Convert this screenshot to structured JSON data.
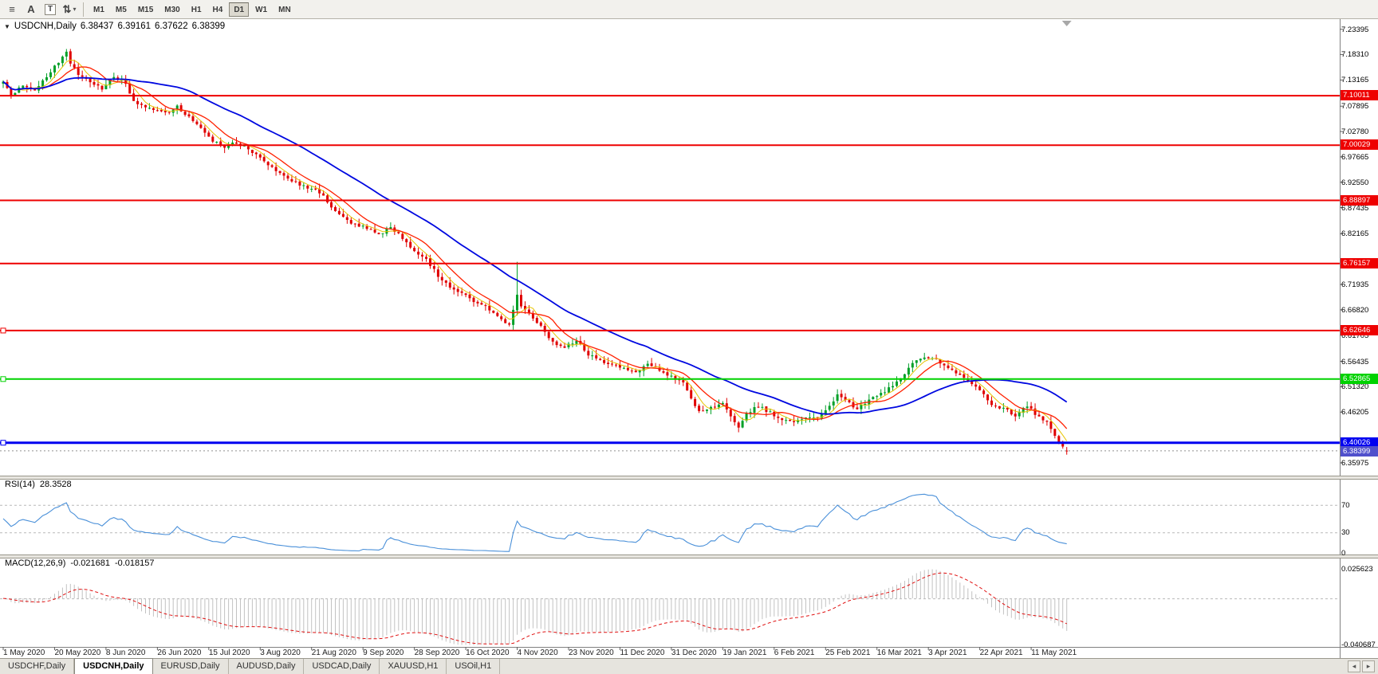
{
  "toolbar": {
    "dropdown_glyph": "▾",
    "icons": [
      {
        "name": "chart-list",
        "glyph": "≡",
        "dropdown": false,
        "boxed": false
      },
      {
        "name": "cursor-tool",
        "glyph": "A",
        "dropdown": false,
        "boxed": false
      },
      {
        "name": "text-tool",
        "glyph": "T",
        "dropdown": false,
        "boxed": true
      },
      {
        "name": "objects-tool",
        "glyph": "⇅",
        "dropdown": true,
        "boxed": false
      }
    ],
    "timeframes": [
      {
        "label": "M1",
        "active": false
      },
      {
        "label": "M5",
        "active": false
      },
      {
        "label": "M15",
        "active": false
      },
      {
        "label": "M30",
        "active": false
      },
      {
        "label": "H1",
        "active": false
      },
      {
        "label": "H4",
        "active": false
      },
      {
        "label": "D1",
        "active": true
      },
      {
        "label": "W1",
        "active": false
      },
      {
        "label": "MN",
        "active": false
      }
    ]
  },
  "chart_data": {
    "type": "candlestick",
    "symbol": "USDCNH",
    "timeframe": "Daily",
    "header_symbol": "USDCNH,Daily",
    "collapse_glyph": "▼",
    "ohlc": {
      "open": "6.38437",
      "high": "6.39161",
      "low": "6.37622",
      "close": "6.38399"
    },
    "current_price": "6.38399",
    "price_axis": {
      "min": 6.342,
      "max": 7.248,
      "ticks": [
        "7.23395",
        "7.18310",
        "7.13165",
        "7.07895",
        "7.02780",
        "6.97665",
        "6.92550",
        "6.87435",
        "6.82165",
        "6.71935",
        "6.66820",
        "6.61705",
        "6.56435",
        "6.51320",
        "6.46205",
        "6.35975"
      ]
    },
    "hlines": [
      {
        "price": 7.10011,
        "label": "7.10011",
        "color": "#ee0000",
        "thickness": 2,
        "handle": false
      },
      {
        "price": 7.00029,
        "label": "7.00029",
        "color": "#ee0000",
        "thickness": 2,
        "handle": false
      },
      {
        "price": 6.88897,
        "label": "6.88897",
        "color": "#ee0000",
        "thickness": 2,
        "handle": false
      },
      {
        "price": 6.76157,
        "label": "6.76157",
        "color": "#ee0000",
        "thickness": 2,
        "handle": false
      },
      {
        "price": 6.62646,
        "label": "6.62646",
        "color": "#ee0000",
        "thickness": 2,
        "handle": true
      },
      {
        "price": 6.52865,
        "label": "6.52865",
        "color": "#00d200",
        "thickness": 2,
        "handle": true
      },
      {
        "price": 6.40026,
        "label": "6.40026",
        "color": "#0000f0",
        "thickness": 3,
        "handle": true
      }
    ],
    "date_labels": [
      "1 May 2020",
      "20 May 2020",
      "8 Jun 2020",
      "26 Jun 2020",
      "15 Jul 2020",
      "3 Aug 2020",
      "21 Aug 2020",
      "9 Sep 2020",
      "28 Sep 2020",
      "16 Oct 2020",
      "4 Nov 2020",
      "23 Nov 2020",
      "11 Dec 2020",
      "31 Dec 2020",
      "19 Jan 2021",
      "6 Feb 2021",
      "25 Feb 2021",
      "16 Mar 2021",
      "3 Apr 2021",
      "22 Apr 2021",
      "11 May 2021"
    ],
    "days_per_label": 13,
    "days": 270,
    "close_path_anchors": [
      [
        0,
        7.125
      ],
      [
        2,
        7.1
      ],
      [
        5,
        7.12
      ],
      [
        8,
        7.11
      ],
      [
        11,
        7.14
      ],
      [
        14,
        7.168
      ],
      [
        16,
        7.192
      ],
      [
        17,
        7.165
      ],
      [
        19,
        7.142
      ],
      [
        22,
        7.13
      ],
      [
        25,
        7.115
      ],
      [
        28,
        7.138
      ],
      [
        31,
        7.125
      ],
      [
        33,
        7.09
      ],
      [
        36,
        7.075
      ],
      [
        39,
        7.07
      ],
      [
        42,
        7.064
      ],
      [
        44,
        7.08
      ],
      [
        47,
        7.055
      ],
      [
        50,
        7.034
      ],
      [
        53,
        7.01
      ],
      [
        56,
        6.998
      ],
      [
        59,
        7.006
      ],
      [
        62,
        6.992
      ],
      [
        65,
        6.974
      ],
      [
        68,
        6.955
      ],
      [
        71,
        6.94
      ],
      [
        74,
        6.925
      ],
      [
        77,
        6.915
      ],
      [
        80,
        6.905
      ],
      [
        83,
        6.878
      ],
      [
        86,
        6.856
      ],
      [
        89,
        6.84
      ],
      [
        92,
        6.834
      ],
      [
        95,
        6.82
      ],
      [
        98,
        6.838
      ],
      [
        101,
        6.81
      ],
      [
        104,
        6.79
      ],
      [
        107,
        6.768
      ],
      [
        110,
        6.738
      ],
      [
        113,
        6.712
      ],
      [
        116,
        6.7
      ],
      [
        119,
        6.686
      ],
      [
        122,
        6.675
      ],
      [
        125,
        6.655
      ],
      [
        128,
        6.636
      ],
      [
        130,
        6.698
      ],
      [
        131,
        6.672
      ],
      [
        133,
        6.66
      ],
      [
        136,
        6.636
      ],
      [
        139,
        6.602
      ],
      [
        142,
        6.592
      ],
      [
        145,
        6.606
      ],
      [
        148,
        6.578
      ],
      [
        151,
        6.566
      ],
      [
        154,
        6.557
      ],
      [
        157,
        6.55
      ],
      [
        160,
        6.544
      ],
      [
        163,
        6.558
      ],
      [
        166,
        6.546
      ],
      [
        169,
        6.534
      ],
      [
        172,
        6.52
      ],
      [
        174,
        6.49
      ],
      [
        176,
        6.463
      ],
      [
        179,
        6.47
      ],
      [
        182,
        6.477
      ],
      [
        184,
        6.452
      ],
      [
        186,
        6.433
      ],
      [
        188,
        6.458
      ],
      [
        191,
        6.474
      ],
      [
        194,
        6.46
      ],
      [
        197,
        6.446
      ],
      [
        200,
        6.44
      ],
      [
        203,
        6.448
      ],
      [
        206,
        6.452
      ],
      [
        209,
        6.473
      ],
      [
        211,
        6.5
      ],
      [
        213,
        6.483
      ],
      [
        216,
        6.47
      ],
      [
        219,
        6.488
      ],
      [
        222,
        6.5
      ],
      [
        225,
        6.514
      ],
      [
        228,
        6.538
      ],
      [
        231,
        6.568
      ],
      [
        233,
        6.575
      ],
      [
        236,
        6.566
      ],
      [
        239,
        6.55
      ],
      [
        242,
        6.536
      ],
      [
        245,
        6.52
      ],
      [
        248,
        6.496
      ],
      [
        250,
        6.476
      ],
      [
        253,
        6.469
      ],
      [
        256,
        6.455
      ],
      [
        258,
        6.474
      ],
      [
        260,
        6.467
      ],
      [
        262,
        6.45
      ],
      [
        264,
        6.44
      ],
      [
        266,
        6.415
      ],
      [
        267,
        6.403
      ],
      [
        268,
        6.392
      ],
      [
        269,
        6.384
      ]
    ],
    "spike": {
      "day": 130,
      "high": 6.765
    },
    "moving_averages": [
      {
        "name": "ma-fast",
        "period": 5,
        "color": "#e8c400",
        "width": 1
      },
      {
        "name": "ma-medium",
        "period": 10,
        "color": "#ff2000",
        "width": 1.3
      },
      {
        "name": "ma-slow",
        "period": 34,
        "color": "#0008e0",
        "width": 1.8
      }
    ],
    "colors": {
      "up": "#00a028",
      "down": "#e00000",
      "axis_border": "#808080",
      "current_price_label_bg": "#5050cc",
      "dotted_price_line": "#909090",
      "macd_hist": "#c2c2c2",
      "macd_signal": "#e01010",
      "rsi_line": "#4a90d9",
      "level_dash": "#b8b8b8"
    },
    "indicators": {
      "rsi": {
        "label": "RSI(14)",
        "current": "28.3528",
        "period": 14,
        "levels": [
          70,
          30,
          0
        ]
      },
      "macd": {
        "label": "MACD(12,26,9)",
        "macd_value": "-0.021681",
        "signal_value": "-0.018157",
        "axis_top": "0.025623",
        "axis_bottom": "-0.040687"
      }
    }
  },
  "tab_bar": {
    "scroll_left": "◂",
    "scroll_right": "▸",
    "tabs": [
      {
        "label": "USDCHF,Daily",
        "active": false
      },
      {
        "label": "USDCNH,Daily",
        "active": true
      },
      {
        "label": "EURUSD,Daily",
        "active": false
      },
      {
        "label": "AUDUSD,Daily",
        "active": false
      },
      {
        "label": "USDCAD,Daily",
        "active": false
      },
      {
        "label": "XAUUSD,H1",
        "active": false
      },
      {
        "label": "USOil,H1",
        "active": false
      }
    ]
  }
}
